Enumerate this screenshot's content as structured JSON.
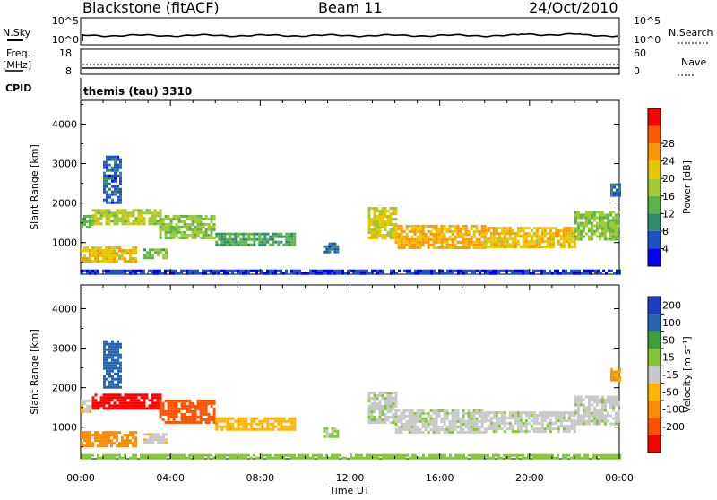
{
  "header": {
    "station": "Blackstone (fitACF)",
    "beam": "Beam 11",
    "date": "24/Oct/2010"
  },
  "strip_nsky": {
    "left_label": "N.Sky",
    "left_ticks": [
      "10^5",
      "10^0"
    ],
    "right_ticks": [
      "10^5",
      "10^0"
    ],
    "right_label": "N.Search"
  },
  "strip_freq": {
    "left_label_1": "Freq.",
    "left_label_2": "[MHz]",
    "left_ticks": [
      "18",
      "8"
    ],
    "right_ticks": [
      "60",
      "0"
    ],
    "right_label": "Nave"
  },
  "cpid": {
    "label": "CPID",
    "text": "themis (tau) 3310"
  },
  "time_axis": {
    "label": "Time UT",
    "ticks": [
      "00:00",
      "04:00",
      "08:00",
      "12:00",
      "16:00",
      "20:00",
      "00:00"
    ]
  },
  "colors": {
    "power": [
      "#0000ff",
      "#1e50c8",
      "#2e8c6e",
      "#5ab446",
      "#a0c832",
      "#e6c800",
      "#ff9600",
      "#ff5a00",
      "#ff0000"
    ],
    "velocity": [
      "#ff0000",
      "#ff5000",
      "#ff8c00",
      "#ffb400",
      "#c8c8c8",
      "#80c832",
      "#3ca03c",
      "#2864b4",
      "#1e3cc8"
    ]
  },
  "chart_data": [
    {
      "type": "heatmap",
      "panel": "power",
      "ylabel": "Slant Range [km]",
      "ylim": [
        200,
        4600
      ],
      "yticks": [
        "1000",
        "2000",
        "3000",
        "4000"
      ],
      "xlim_hours": [
        0,
        24
      ],
      "colorbar": {
        "label": "Power [dB]",
        "ticks": [
          "4",
          "8",
          "12",
          "16",
          "20",
          "24",
          "28"
        ]
      },
      "regions": [
        {
          "t0": 0.0,
          "t1": 0.5,
          "r0": 1400,
          "r1": 1700,
          "v": 14
        },
        {
          "t0": 0.5,
          "t1": 3.5,
          "r0": 1450,
          "r1": 1850,
          "v": 18
        },
        {
          "t0": 3.5,
          "t1": 6.0,
          "r0": 1150,
          "r1": 1700,
          "v": 16
        },
        {
          "t0": 6.0,
          "t1": 9.5,
          "r0": 950,
          "r1": 1250,
          "v": 12
        },
        {
          "t0": 0.0,
          "t1": 2.5,
          "r0": 550,
          "r1": 900,
          "v": 22
        },
        {
          "t0": 2.8,
          "t1": 3.8,
          "r0": 600,
          "r1": 850,
          "v": 14
        },
        {
          "t0": 10.8,
          "t1": 11.5,
          "r0": 750,
          "r1": 1000,
          "v": 6
        },
        {
          "t0": 1.0,
          "t1": 1.8,
          "r0": 2000,
          "r1": 3200,
          "v": 6
        },
        {
          "t0": 12.8,
          "t1": 14.0,
          "r0": 1100,
          "r1": 1900,
          "v": 20
        },
        {
          "t0": 14.0,
          "t1": 18.0,
          "r0": 850,
          "r1": 1450,
          "v": 24
        },
        {
          "t0": 18.0,
          "t1": 22.0,
          "r0": 900,
          "r1": 1400,
          "v": 22
        },
        {
          "t0": 22.0,
          "t1": 24.0,
          "r0": 1100,
          "r1": 1800,
          "v": 16
        },
        {
          "t0": 23.6,
          "t1": 24.0,
          "r0": 2200,
          "r1": 2500,
          "v": 8
        },
        {
          "t0": 0.0,
          "t1": 24.0,
          "r0": 220,
          "r1": 320,
          "v": 4
        }
      ]
    },
    {
      "type": "heatmap",
      "panel": "velocity",
      "ylabel": "Slant Range [km]",
      "ylim": [
        200,
        4600
      ],
      "yticks": [
        "1000",
        "2000",
        "3000",
        "4000"
      ],
      "xlim_hours": [
        0,
        24
      ],
      "colorbar": {
        "label": "Velocity [m s⁻¹]",
        "ticks": [
          "200",
          "100",
          "50",
          "15",
          "-15",
          "-50",
          "-100",
          "-200"
        ]
      },
      "regions": [
        {
          "t0": 0.0,
          "t1": 0.5,
          "r0": 1400,
          "r1": 1700,
          "v": -10
        },
        {
          "t0": 0.5,
          "t1": 3.5,
          "r0": 1450,
          "r1": 1850,
          "v": -220
        },
        {
          "t0": 3.5,
          "t1": 6.0,
          "r0": 1150,
          "r1": 1700,
          "v": -150
        },
        {
          "t0": 6.0,
          "t1": 9.5,
          "r0": 950,
          "r1": 1250,
          "v": -40
        },
        {
          "t0": 0.0,
          "t1": 2.5,
          "r0": 550,
          "r1": 900,
          "v": -70
        },
        {
          "t0": 2.8,
          "t1": 3.8,
          "r0": 600,
          "r1": 850,
          "v": -5
        },
        {
          "t0": 10.8,
          "t1": 11.5,
          "r0": 750,
          "r1": 1000,
          "v": 20
        },
        {
          "t0": 1.0,
          "t1": 1.8,
          "r0": 2000,
          "r1": 3200,
          "v": 150
        },
        {
          "t0": 12.8,
          "t1": 14.0,
          "r0": 1100,
          "r1": 1900,
          "v": 0
        },
        {
          "t0": 14.0,
          "t1": 18.0,
          "r0": 850,
          "r1": 1450,
          "v": 0
        },
        {
          "t0": 18.0,
          "t1": 22.0,
          "r0": 900,
          "r1": 1400,
          "v": 0
        },
        {
          "t0": 22.0,
          "t1": 24.0,
          "r0": 1100,
          "r1": 1800,
          "v": 0
        },
        {
          "t0": 23.6,
          "t1": 24.0,
          "r0": 2200,
          "r1": 2500,
          "v": -60
        },
        {
          "t0": 0.0,
          "t1": 24.0,
          "r0": 220,
          "r1": 320,
          "v": 30
        }
      ]
    }
  ]
}
